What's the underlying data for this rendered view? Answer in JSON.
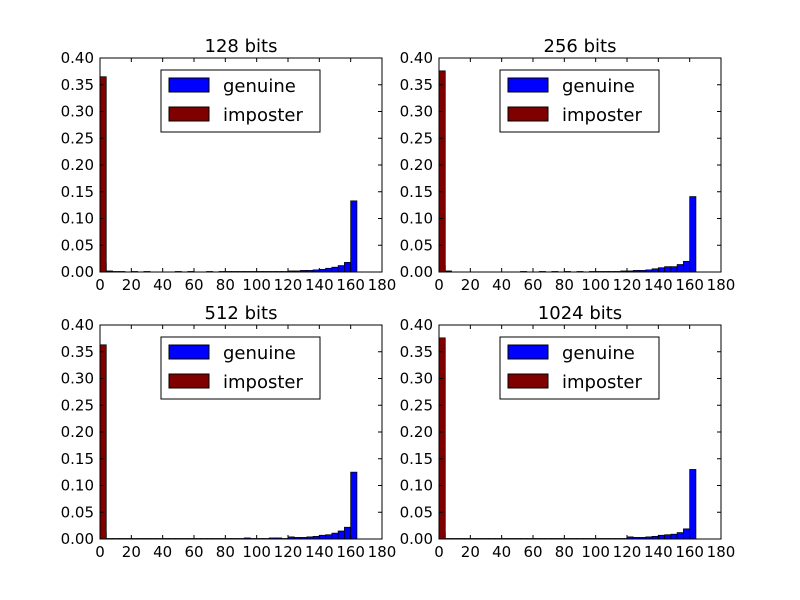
{
  "chart_data": [
    {
      "type": "bar",
      "title": "128 bits",
      "xlabel": "",
      "ylabel": "",
      "xlim": [
        0,
        180
      ],
      "ylim": [
        0,
        0.4
      ],
      "xticks": [
        "0",
        "20",
        "40",
        "60",
        "80",
        "100",
        "120",
        "140",
        "160",
        "180"
      ],
      "yticks": [
        "0.00",
        "0.05",
        "0.10",
        "0.15",
        "0.20",
        "0.25",
        "0.30",
        "0.35",
        "0.40"
      ],
      "bin_width": 4,
      "grid": false,
      "legend": {
        "position": "top-center",
        "entries": [
          "genuine",
          "imposter"
        ]
      },
      "series": [
        {
          "name": "genuine",
          "color": "#0000ff",
          "bins": [
            [
              0,
              0.016
            ],
            [
              4,
              0.002
            ],
            [
              8,
              0.001
            ],
            [
              12,
              0.001
            ],
            [
              20,
              0.001
            ],
            [
              28,
              0.001
            ],
            [
              48,
              0.001
            ],
            [
              56,
              0.001
            ],
            [
              68,
              0.001
            ],
            [
              76,
              0.001
            ],
            [
              80,
              0.001
            ],
            [
              84,
              0.001
            ],
            [
              88,
              0.001
            ],
            [
              92,
              0.001
            ],
            [
              96,
              0.001
            ],
            [
              100,
              0.001
            ],
            [
              104,
              0.001
            ],
            [
              108,
              0.001
            ],
            [
              112,
              0.001
            ],
            [
              116,
              0.001
            ],
            [
              120,
              0.002
            ],
            [
              124,
              0.002
            ],
            [
              128,
              0.003
            ],
            [
              132,
              0.003
            ],
            [
              136,
              0.004
            ],
            [
              140,
              0.005
            ],
            [
              144,
              0.007
            ],
            [
              148,
              0.009
            ],
            [
              152,
              0.012
            ],
            [
              156,
              0.018
            ],
            [
              160,
              0.133
            ]
          ]
        },
        {
          "name": "imposter",
          "color": "#800000",
          "bins": [
            [
              0,
              0.365
            ]
          ]
        }
      ]
    },
    {
      "type": "bar",
      "title": "256 bits",
      "xlabel": "",
      "ylabel": "",
      "xlim": [
        0,
        180
      ],
      "ylim": [
        0,
        0.4
      ],
      "xticks": [
        "0",
        "20",
        "40",
        "60",
        "80",
        "100",
        "120",
        "140",
        "160",
        "180"
      ],
      "yticks": [
        "0.00",
        "0.05",
        "0.10",
        "0.15",
        "0.20",
        "0.25",
        "0.30",
        "0.35",
        "0.40"
      ],
      "bin_width": 4,
      "grid": false,
      "legend": {
        "position": "top-center",
        "entries": [
          "genuine",
          "imposter"
        ]
      },
      "series": [
        {
          "name": "genuine",
          "color": "#0000ff",
          "bins": [
            [
              0,
              0.012
            ],
            [
              4,
              0.002
            ],
            [
              52,
              0.001
            ],
            [
              64,
              0.001
            ],
            [
              72,
              0.001
            ],
            [
              80,
              0.001
            ],
            [
              88,
              0.001
            ],
            [
              96,
              0.001
            ],
            [
              100,
              0.001
            ],
            [
              104,
              0.001
            ],
            [
              108,
              0.001
            ],
            [
              112,
              0.001
            ],
            [
              116,
              0.002
            ],
            [
              120,
              0.002
            ],
            [
              124,
              0.003
            ],
            [
              128,
              0.003
            ],
            [
              132,
              0.004
            ],
            [
              136,
              0.006
            ],
            [
              140,
              0.008
            ],
            [
              144,
              0.01
            ],
            [
              148,
              0.01
            ],
            [
              152,
              0.014
            ],
            [
              156,
              0.02
            ],
            [
              160,
              0.141
            ]
          ]
        },
        {
          "name": "imposter",
          "color": "#800000",
          "bins": [
            [
              0,
              0.376
            ]
          ]
        }
      ]
    },
    {
      "type": "bar",
      "title": "512 bits",
      "xlabel": "",
      "ylabel": "",
      "xlim": [
        0,
        180
      ],
      "ylim": [
        0,
        0.4
      ],
      "xticks": [
        "0",
        "20",
        "40",
        "60",
        "80",
        "100",
        "120",
        "140",
        "160",
        "180"
      ],
      "yticks": [
        "0.00",
        "0.05",
        "0.10",
        "0.15",
        "0.20",
        "0.25",
        "0.30",
        "0.35",
        "0.40"
      ],
      "bin_width": 4,
      "grid": false,
      "legend": {
        "position": "top-center",
        "entries": [
          "genuine",
          "imposter"
        ]
      },
      "series": [
        {
          "name": "genuine",
          "color": "#0000ff",
          "bins": [
            [
              0,
              0.012
            ],
            [
              4,
              0.001
            ],
            [
              8,
              0.001
            ],
            [
              12,
              0.001
            ],
            [
              16,
              0.001
            ],
            [
              20,
              0.001
            ],
            [
              24,
              0.001
            ],
            [
              28,
              0.001
            ],
            [
              32,
              0.001
            ],
            [
              36,
              0.001
            ],
            [
              40,
              0.001
            ],
            [
              44,
              0.001
            ],
            [
              48,
              0.001
            ],
            [
              52,
              0.001
            ],
            [
              56,
              0.001
            ],
            [
              60,
              0.001
            ],
            [
              64,
              0.001
            ],
            [
              68,
              0.001
            ],
            [
              72,
              0.001
            ],
            [
              76,
              0.001
            ],
            [
              80,
              0.001
            ],
            [
              84,
              0.001
            ],
            [
              88,
              0.001
            ],
            [
              92,
              0.002
            ],
            [
              96,
              0.001
            ],
            [
              100,
              0.001
            ],
            [
              104,
              0.001
            ],
            [
              108,
              0.002
            ],
            [
              112,
              0.002
            ],
            [
              116,
              0.001
            ],
            [
              120,
              0.004
            ],
            [
              124,
              0.003
            ],
            [
              128,
              0.003
            ],
            [
              132,
              0.004
            ],
            [
              136,
              0.005
            ],
            [
              140,
              0.007
            ],
            [
              144,
              0.008
            ],
            [
              148,
              0.011
            ],
            [
              152,
              0.015
            ],
            [
              156,
              0.022
            ],
            [
              160,
              0.125
            ]
          ]
        },
        {
          "name": "imposter",
          "color": "#800000",
          "bins": [
            [
              0,
              0.363
            ]
          ]
        }
      ]
    },
    {
      "type": "bar",
      "title": "1024 bits",
      "xlabel": "",
      "ylabel": "",
      "xlim": [
        0,
        180
      ],
      "ylim": [
        0,
        0.4
      ],
      "xticks": [
        "0",
        "20",
        "40",
        "60",
        "80",
        "100",
        "120",
        "140",
        "160",
        "180"
      ],
      "yticks": [
        "0.00",
        "0.05",
        "0.10",
        "0.15",
        "0.20",
        "0.25",
        "0.30",
        "0.35",
        "0.40"
      ],
      "bin_width": 4,
      "grid": false,
      "legend": {
        "position": "top-center",
        "entries": [
          "genuine",
          "imposter"
        ]
      },
      "series": [
        {
          "name": "genuine",
          "color": "#0000ff",
          "bins": [
            [
              0,
              0.012
            ],
            [
              4,
              0.001
            ],
            [
              8,
              0.001
            ],
            [
              12,
              0.001
            ],
            [
              16,
              0.001
            ],
            [
              20,
              0.001
            ],
            [
              24,
              0.001
            ],
            [
              28,
              0.001
            ],
            [
              32,
              0.001
            ],
            [
              36,
              0.001
            ],
            [
              40,
              0.001
            ],
            [
              44,
              0.001
            ],
            [
              48,
              0.001
            ],
            [
              52,
              0.001
            ],
            [
              56,
              0.001
            ],
            [
              60,
              0.001
            ],
            [
              64,
              0.001
            ],
            [
              68,
              0.001
            ],
            [
              72,
              0.001
            ],
            [
              76,
              0.001
            ],
            [
              80,
              0.001
            ],
            [
              84,
              0.001
            ],
            [
              88,
              0.001
            ],
            [
              92,
              0.001
            ],
            [
              96,
              0.001
            ],
            [
              100,
              0.001
            ],
            [
              104,
              0.001
            ],
            [
              108,
              0.001
            ],
            [
              112,
              0.001
            ],
            [
              116,
              0.001
            ],
            [
              120,
              0.004
            ],
            [
              124,
              0.003
            ],
            [
              128,
              0.003
            ],
            [
              132,
              0.004
            ],
            [
              136,
              0.005
            ],
            [
              140,
              0.007
            ],
            [
              144,
              0.008
            ],
            [
              148,
              0.009
            ],
            [
              152,
              0.012
            ],
            [
              156,
              0.019
            ],
            [
              160,
              0.13
            ]
          ]
        },
        {
          "name": "imposter",
          "color": "#800000",
          "bins": [
            [
              0,
              0.376
            ]
          ]
        }
      ]
    }
  ]
}
